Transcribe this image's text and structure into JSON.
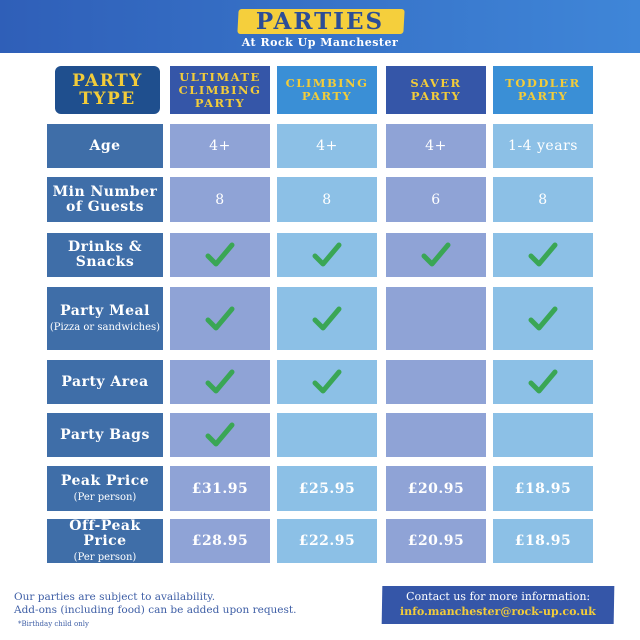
{
  "header": {
    "title": "PARTIES",
    "subtitle": "At Rock Up Manchester"
  },
  "table": {
    "corner_label": "PARTY TYPE",
    "columns": [
      "ULTIMATE CLIMBING PARTY",
      "CLIMBING PARTY",
      "SAVER PARTY",
      "TODDLER PARTY"
    ],
    "rows": [
      {
        "label": "Age",
        "note": "",
        "type": "text",
        "values": [
          "4+",
          "4+",
          "4+",
          "1-4 years"
        ]
      },
      {
        "label": "Min Number of Guests",
        "note": "",
        "type": "text",
        "values": [
          "8",
          "8",
          "6",
          "8"
        ]
      },
      {
        "label": "Drinks & Snacks",
        "note": "",
        "type": "check",
        "values": [
          true,
          true,
          true,
          true
        ]
      },
      {
        "label": "Party Meal",
        "note": "(Pizza or sandwiches)",
        "type": "check",
        "values": [
          true,
          true,
          false,
          true
        ]
      },
      {
        "label": "Party Area",
        "note": "",
        "type": "check",
        "values": [
          true,
          true,
          false,
          true
        ]
      },
      {
        "label": "Party Bags",
        "note": "",
        "type": "check",
        "values": [
          true,
          false,
          false,
          false
        ]
      },
      {
        "label": "Peak Price",
        "note": "(Per person)",
        "type": "text",
        "values": [
          "£31.95",
          "£25.95",
          "£20.95",
          "£18.95"
        ]
      },
      {
        "label": "Off-Peak Price",
        "note": "(Per person)",
        "type": "text",
        "values": [
          "£28.95",
          "£22.95",
          "£20.95",
          "£18.95"
        ]
      }
    ]
  },
  "footer": {
    "line1": "Our parties are subject to availability.",
    "line2": "Add-ons (including food) can be added upon request.",
    "note": "*Birthday child only",
    "contact_label": "Contact us for more information:",
    "email": "info.manchester@rock-up.co.uk"
  },
  "colors": {
    "header_dark": "#3556a8",
    "header_light": "#3a8fd6",
    "accent_yellow": "#f2cc3a",
    "check_green": "#3aa655",
    "label_bg": "#3f6ea8"
  }
}
